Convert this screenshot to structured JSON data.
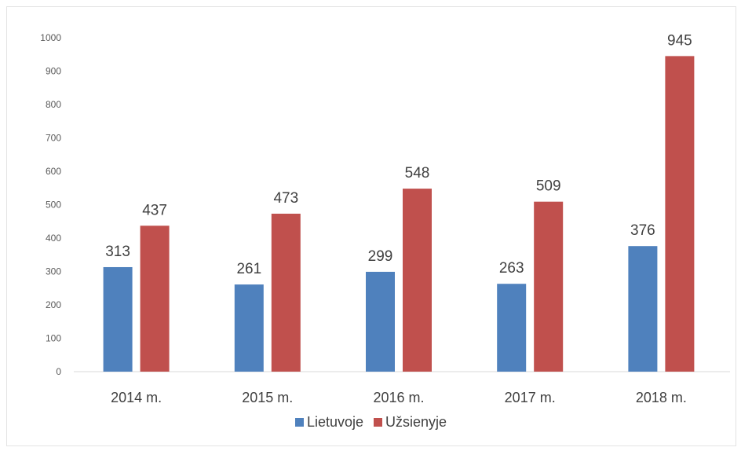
{
  "chart_data": {
    "type": "bar",
    "title": "",
    "xlabel": "",
    "ylabel": "",
    "categories": [
      "2014 m.",
      "2015 m.",
      "2016 m.",
      "2017 m.",
      "2018 m."
    ],
    "series": [
      {
        "name": "Lietuvoje",
        "color": "#4f81bd",
        "values": [
          313,
          261,
          299,
          263,
          376
        ]
      },
      {
        "name": "Užsienyje",
        "color": "#c0504d",
        "values": [
          437,
          473,
          548,
          509,
          945
        ]
      }
    ],
    "ylim": [
      0,
      1000
    ],
    "yticks": [
      0,
      100,
      200,
      300,
      400,
      500,
      600,
      700,
      800,
      900,
      1000
    ],
    "grid": false,
    "data_labels": true,
    "legend": "bottom"
  }
}
